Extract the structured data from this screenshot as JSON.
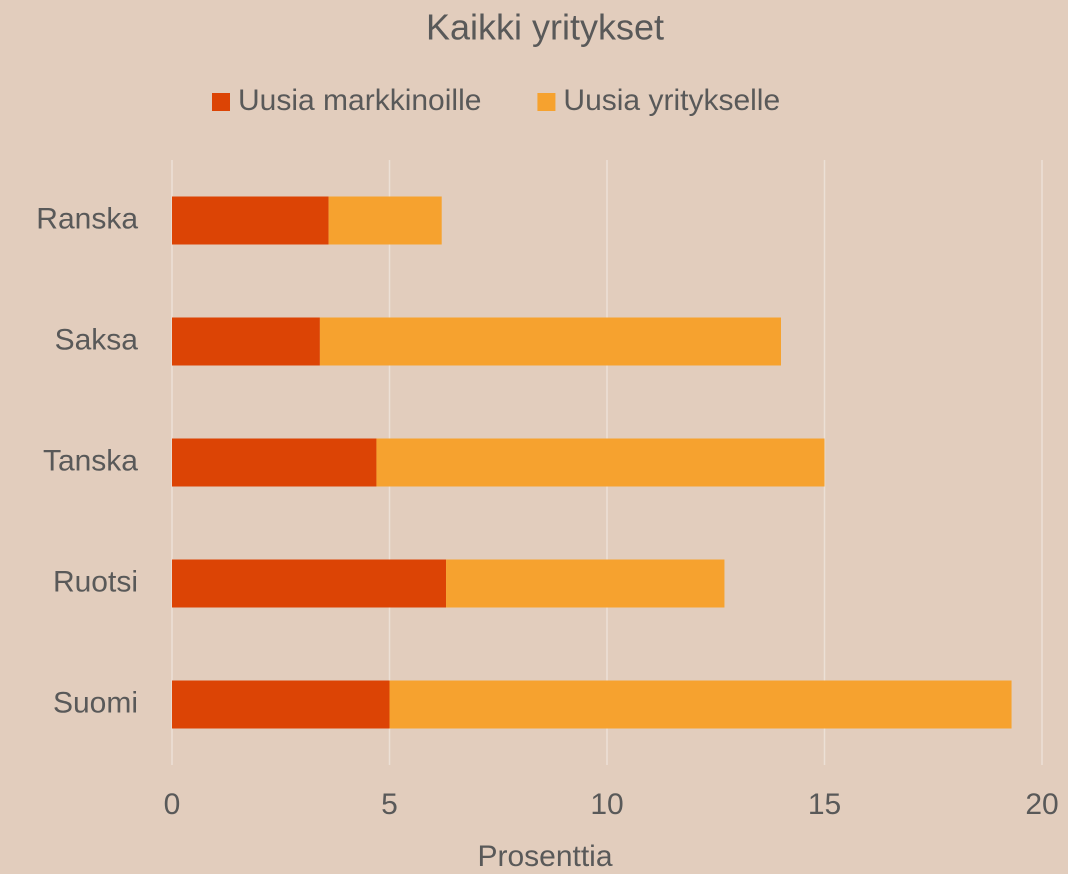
{
  "chart_data": {
    "type": "stacked_bar_horizontal",
    "title": "Kaikki yritykset",
    "categories": [
      "Ranska",
      "Saksa",
      "Tanska",
      "Ruotsi",
      "Suomi"
    ],
    "series": [
      {
        "name": "Uusia markkinoille",
        "color": "#dc4405",
        "values": [
          3.6,
          3.4,
          4.7,
          6.3,
          5.0
        ]
      },
      {
        "name": "Uusia yritykselle",
        "color": "#f6a22f",
        "values": [
          2.6,
          10.6,
          10.3,
          6.4,
          14.3
        ]
      }
    ],
    "x_label": "Prosenttia",
    "xlim": [
      0,
      20
    ],
    "xticks": [
      0,
      5,
      10,
      15,
      20
    ],
    "grid": true,
    "legend": "top"
  }
}
